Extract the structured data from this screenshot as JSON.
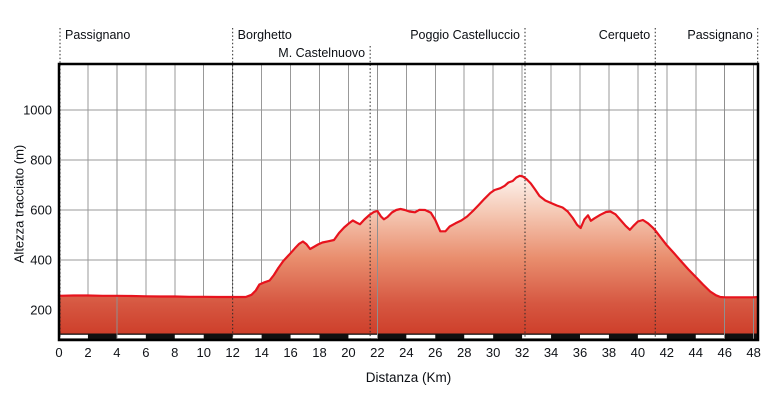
{
  "axes": {
    "xlabel": "Distanza (Km)",
    "ylabel": "Altezza tracciato (m)"
  },
  "chart_data": {
    "type": "area",
    "title": "",
    "xlabel": "Distanza (Km)",
    "ylabel": "Altezza tracciato (m)",
    "xlim": [
      0,
      48.3
    ],
    "ylim": [
      80,
      1184
    ],
    "xticks": [
      0,
      2,
      4,
      6,
      8,
      10,
      12,
      14,
      16,
      18,
      20,
      22,
      24,
      26,
      28,
      30,
      32,
      34,
      36,
      38,
      40,
      42,
      44,
      46,
      48
    ],
    "yticks": [
      200,
      400,
      600,
      800,
      1000
    ],
    "grid": true,
    "legend": "none",
    "waypoints": [
      {
        "label": "Passignano",
        "km": 0.07,
        "row": 1,
        "align": "left"
      },
      {
        "label": "Borghetto",
        "km": 12.0,
        "row": 1,
        "align": "left"
      },
      {
        "label": "M. Castelnuovo",
        "km": 21.5,
        "row": 2,
        "align": "right"
      },
      {
        "label": "Poggio Castelluccio",
        "km": 32.2,
        "row": 1,
        "align": "right"
      },
      {
        "label": "Cerqueto",
        "km": 41.2,
        "row": 1,
        "align": "right"
      },
      {
        "label": "Passignano",
        "km": 48.28,
        "row": 1,
        "align": "right"
      }
    ],
    "section_lines_km": [
      4,
      22,
      46,
      48
    ],
    "scale_bar": {
      "interval_km": 2,
      "white_segments_km": [
        [
          0,
          2
        ],
        [
          4,
          6
        ],
        [
          8,
          10
        ],
        [
          12,
          14
        ],
        [
          16,
          18
        ],
        [
          20,
          22
        ],
        [
          24,
          26
        ],
        [
          28,
          30
        ],
        [
          32,
          34
        ],
        [
          36,
          38
        ],
        [
          40,
          42
        ],
        [
          44,
          46
        ]
      ]
    },
    "profile_km_m": [
      [
        0,
        257
      ],
      [
        1,
        258
      ],
      [
        2,
        258
      ],
      [
        3,
        257
      ],
      [
        4,
        257
      ],
      [
        5,
        256
      ],
      [
        6,
        255
      ],
      [
        7,
        254
      ],
      [
        8,
        254
      ],
      [
        9,
        253
      ],
      [
        10,
        253
      ],
      [
        11,
        252
      ],
      [
        12,
        252
      ],
      [
        12.9,
        252
      ],
      [
        13.3,
        261
      ],
      [
        13.6,
        278
      ],
      [
        13.85,
        302
      ],
      [
        14.2,
        311
      ],
      [
        14.55,
        318
      ],
      [
        14.85,
        340
      ],
      [
        15.15,
        368
      ],
      [
        15.5,
        396
      ],
      [
        15.9,
        421
      ],
      [
        16.3,
        447
      ],
      [
        16.6,
        465
      ],
      [
        16.85,
        474
      ],
      [
        17.1,
        463
      ],
      [
        17.35,
        444
      ],
      [
        17.6,
        452
      ],
      [
        17.9,
        462
      ],
      [
        18.2,
        470
      ],
      [
        18.6,
        475
      ],
      [
        19,
        480
      ],
      [
        19.35,
        508
      ],
      [
        19.7,
        530
      ],
      [
        20,
        545
      ],
      [
        20.3,
        558
      ],
      [
        20.55,
        550
      ],
      [
        20.8,
        543
      ],
      [
        21.1,
        562
      ],
      [
        21.45,
        580
      ],
      [
        21.75,
        592
      ],
      [
        22,
        596
      ],
      [
        22.25,
        574
      ],
      [
        22.45,
        563
      ],
      [
        22.7,
        572
      ],
      [
        23,
        590
      ],
      [
        23.3,
        600
      ],
      [
        23.6,
        604
      ],
      [
        23.9,
        600
      ],
      [
        24.2,
        594
      ],
      [
        24.6,
        591
      ],
      [
        24.9,
        601
      ],
      [
        25.3,
        600
      ],
      [
        25.7,
        589
      ],
      [
        26,
        560
      ],
      [
        26.35,
        515
      ],
      [
        26.7,
        515
      ],
      [
        27,
        534
      ],
      [
        27.4,
        547
      ],
      [
        27.8,
        558
      ],
      [
        28.2,
        574
      ],
      [
        28.6,
        596
      ],
      [
        29,
        620
      ],
      [
        29.4,
        645
      ],
      [
        29.8,
        668
      ],
      [
        30.1,
        680
      ],
      [
        30.5,
        687
      ],
      [
        30.8,
        697
      ],
      [
        31.05,
        710
      ],
      [
        31.35,
        716
      ],
      [
        31.6,
        730
      ],
      [
        31.85,
        737
      ],
      [
        32.05,
        734
      ],
      [
        32.3,
        724
      ],
      [
        32.6,
        706
      ],
      [
        32.9,
        682
      ],
      [
        33.2,
        656
      ],
      [
        33.6,
        638
      ],
      [
        34,
        628
      ],
      [
        34.4,
        618
      ],
      [
        34.8,
        610
      ],
      [
        35.15,
        594
      ],
      [
        35.5,
        568
      ],
      [
        35.8,
        541
      ],
      [
        36.05,
        528
      ],
      [
        36.3,
        562
      ],
      [
        36.55,
        579
      ],
      [
        36.75,
        557
      ],
      [
        37,
        567
      ],
      [
        37.4,
        581
      ],
      [
        37.8,
        592
      ],
      [
        38.1,
        594
      ],
      [
        38.45,
        583
      ],
      [
        38.8,
        560
      ],
      [
        39.15,
        537
      ],
      [
        39.45,
        521
      ],
      [
        39.7,
        537
      ],
      [
        40,
        554
      ],
      [
        40.35,
        560
      ],
      [
        40.7,
        547
      ],
      [
        41,
        531
      ],
      [
        41.2,
        519
      ],
      [
        41.6,
        489
      ],
      [
        42,
        459
      ],
      [
        42.5,
        427
      ],
      [
        43,
        394
      ],
      [
        43.5,
        362
      ],
      [
        44,
        332
      ],
      [
        44.5,
        302
      ],
      [
        45,
        274
      ],
      [
        45.4,
        259
      ],
      [
        45.7,
        252
      ],
      [
        46,
        251
      ],
      [
        47,
        251
      ],
      [
        48,
        251
      ],
      [
        48.3,
        252
      ]
    ]
  },
  "colors": {
    "curve": "#e7131d",
    "fill_top": "#fdf3ee",
    "fill_mid": "#e98e6e",
    "fill_bottom": "#cc3a26",
    "grid": "#999999",
    "section_line": "#8f8f8f",
    "frame": "#000000",
    "dotted_line": "#2a2a2a",
    "bar_black": "#101010",
    "bar_white": "#ffffff",
    "text": "#101318"
  }
}
